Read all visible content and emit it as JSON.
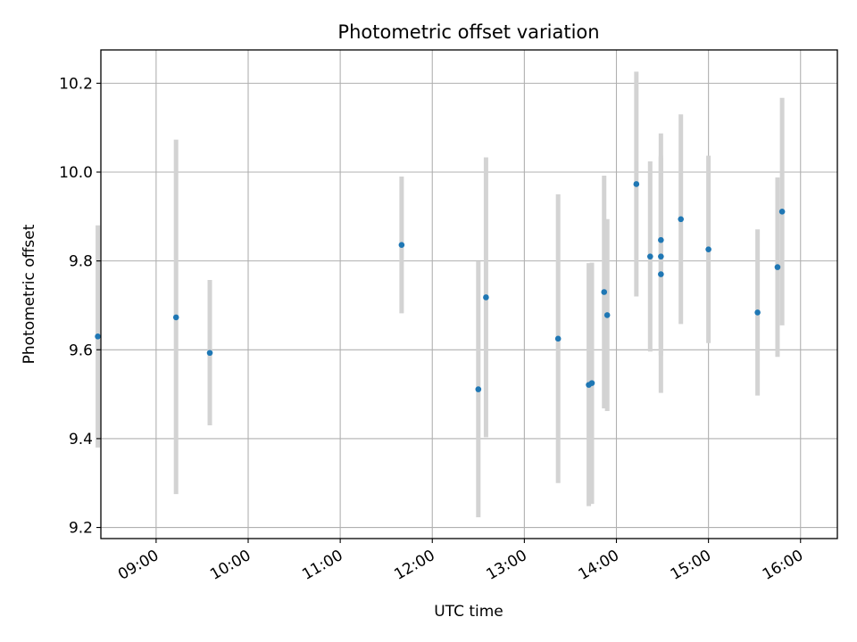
{
  "chart_data": {
    "type": "scatter",
    "title": "Photometric offset variation",
    "xlabel": "UTC time",
    "ylabel": "Photometric offset",
    "x_unit": "UTC time (HH:MM)",
    "xlim": [
      "08:24",
      "16:24"
    ],
    "ylim": [
      9.175,
      10.275
    ],
    "x_ticks": [
      "09:00",
      "10:00",
      "11:00",
      "12:00",
      "13:00",
      "14:00",
      "15:00",
      "16:00"
    ],
    "y_ticks": [
      9.2,
      9.4,
      9.6,
      9.8,
      10.0,
      10.2
    ],
    "y_tick_labels": [
      "9.2",
      "9.4",
      "9.6",
      "9.8",
      "10.0",
      "10.2"
    ],
    "grid": true,
    "colors": {
      "point": "#1f77b4",
      "errorbar": "#d3d3d3",
      "grid": "#b0b0b0"
    },
    "points": [
      {
        "x": "08:22",
        "y": 9.63,
        "ylow": 9.38,
        "yhigh": 9.88
      },
      {
        "x": "09:13",
        "y": 9.673,
        "ylow": 9.275,
        "yhigh": 10.073
      },
      {
        "x": "09:35",
        "y": 9.593,
        "ylow": 9.43,
        "yhigh": 9.757
      },
      {
        "x": "11:40",
        "y": 9.836,
        "ylow": 9.682,
        "yhigh": 9.99
      },
      {
        "x": "12:30",
        "y": 9.511,
        "ylow": 9.223,
        "yhigh": 9.799
      },
      {
        "x": "12:35",
        "y": 9.718,
        "ylow": 9.403,
        "yhigh": 10.033
      },
      {
        "x": "13:22",
        "y": 9.625,
        "ylow": 9.3,
        "yhigh": 9.95
      },
      {
        "x": "13:42",
        "y": 9.521,
        "ylow": 9.248,
        "yhigh": 9.795
      },
      {
        "x": "13:44",
        "y": 9.525,
        "ylow": 9.253,
        "yhigh": 9.796
      },
      {
        "x": "13:52",
        "y": 9.73,
        "ylow": 9.468,
        "yhigh": 9.992
      },
      {
        "x": "13:54",
        "y": 9.678,
        "ylow": 9.462,
        "yhigh": 9.894
      },
      {
        "x": "14:13",
        "y": 9.973,
        "ylow": 9.72,
        "yhigh": 10.226
      },
      {
        "x": "14:22",
        "y": 9.81,
        "ylow": 9.596,
        "yhigh": 10.024
      },
      {
        "x": "14:29",
        "y": 9.847,
        "ylow": 9.607,
        "yhigh": 10.087
      },
      {
        "x": "14:29",
        "y": 9.81,
        "ylow": 9.587,
        "yhigh": 10.033
      },
      {
        "x": "14:29",
        "y": 9.77,
        "ylow": 9.503,
        "yhigh": 10.037
      },
      {
        "x": "14:42",
        "y": 9.894,
        "ylow": 9.658,
        "yhigh": 10.13
      },
      {
        "x": "15:00",
        "y": 9.826,
        "ylow": 9.615,
        "yhigh": 10.037
      },
      {
        "x": "15:32",
        "y": 9.684,
        "ylow": 9.497,
        "yhigh": 9.871
      },
      {
        "x": "15:45",
        "y": 9.786,
        "ylow": 9.584,
        "yhigh": 9.988
      },
      {
        "x": "15:48",
        "y": 9.911,
        "ylow": 9.655,
        "yhigh": 10.167
      }
    ]
  }
}
